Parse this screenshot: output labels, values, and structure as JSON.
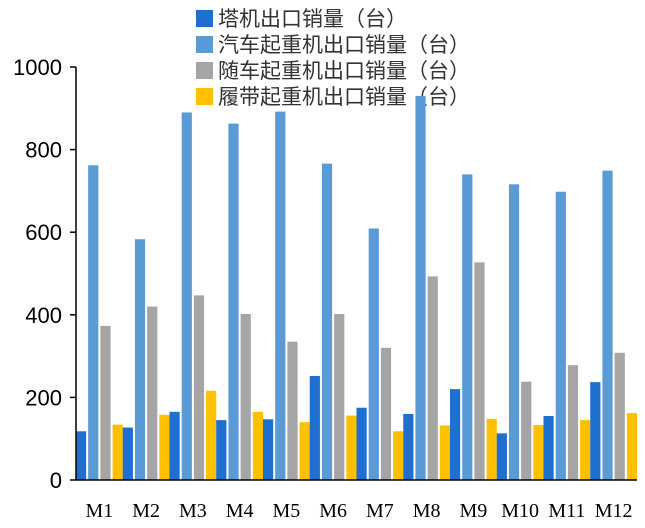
{
  "chart_data": {
    "type": "bar",
    "categories": [
      "M1",
      "M2",
      "M3",
      "M4",
      "M5",
      "M6",
      "M7",
      "M8",
      "M9",
      "M10",
      "M11",
      "M12"
    ],
    "series": [
      {
        "name": "塔机出口销量（台）",
        "color": "#1f6fd1",
        "values": [
          118,
          127,
          165,
          145,
          147,
          252,
          175,
          160,
          220,
          113,
          155,
          237
        ]
      },
      {
        "name": "汽车起重机出口销量（台）",
        "color": "#5b9bd5",
        "values": [
          762,
          583,
          890,
          863,
          892,
          766,
          609,
          930,
          740,
          716,
          698,
          749
        ]
      },
      {
        "name": "随车起重机出口销量（台）",
        "color": "#a5a5a5",
        "values": [
          373,
          420,
          447,
          402,
          335,
          402,
          320,
          493,
          527,
          238,
          278,
          308
        ]
      },
      {
        "name": "履带起重机出口销量（台）",
        "color": "#ffc000",
        "values": [
          134,
          158,
          216,
          165,
          140,
          156,
          118,
          132,
          148,
          133,
          145,
          162
        ]
      }
    ],
    "yticks": [
      0,
      200,
      400,
      600,
      800,
      1000
    ],
    "ylim": [
      0,
      1000
    ],
    "grid": false,
    "legend_position": "top-center"
  }
}
